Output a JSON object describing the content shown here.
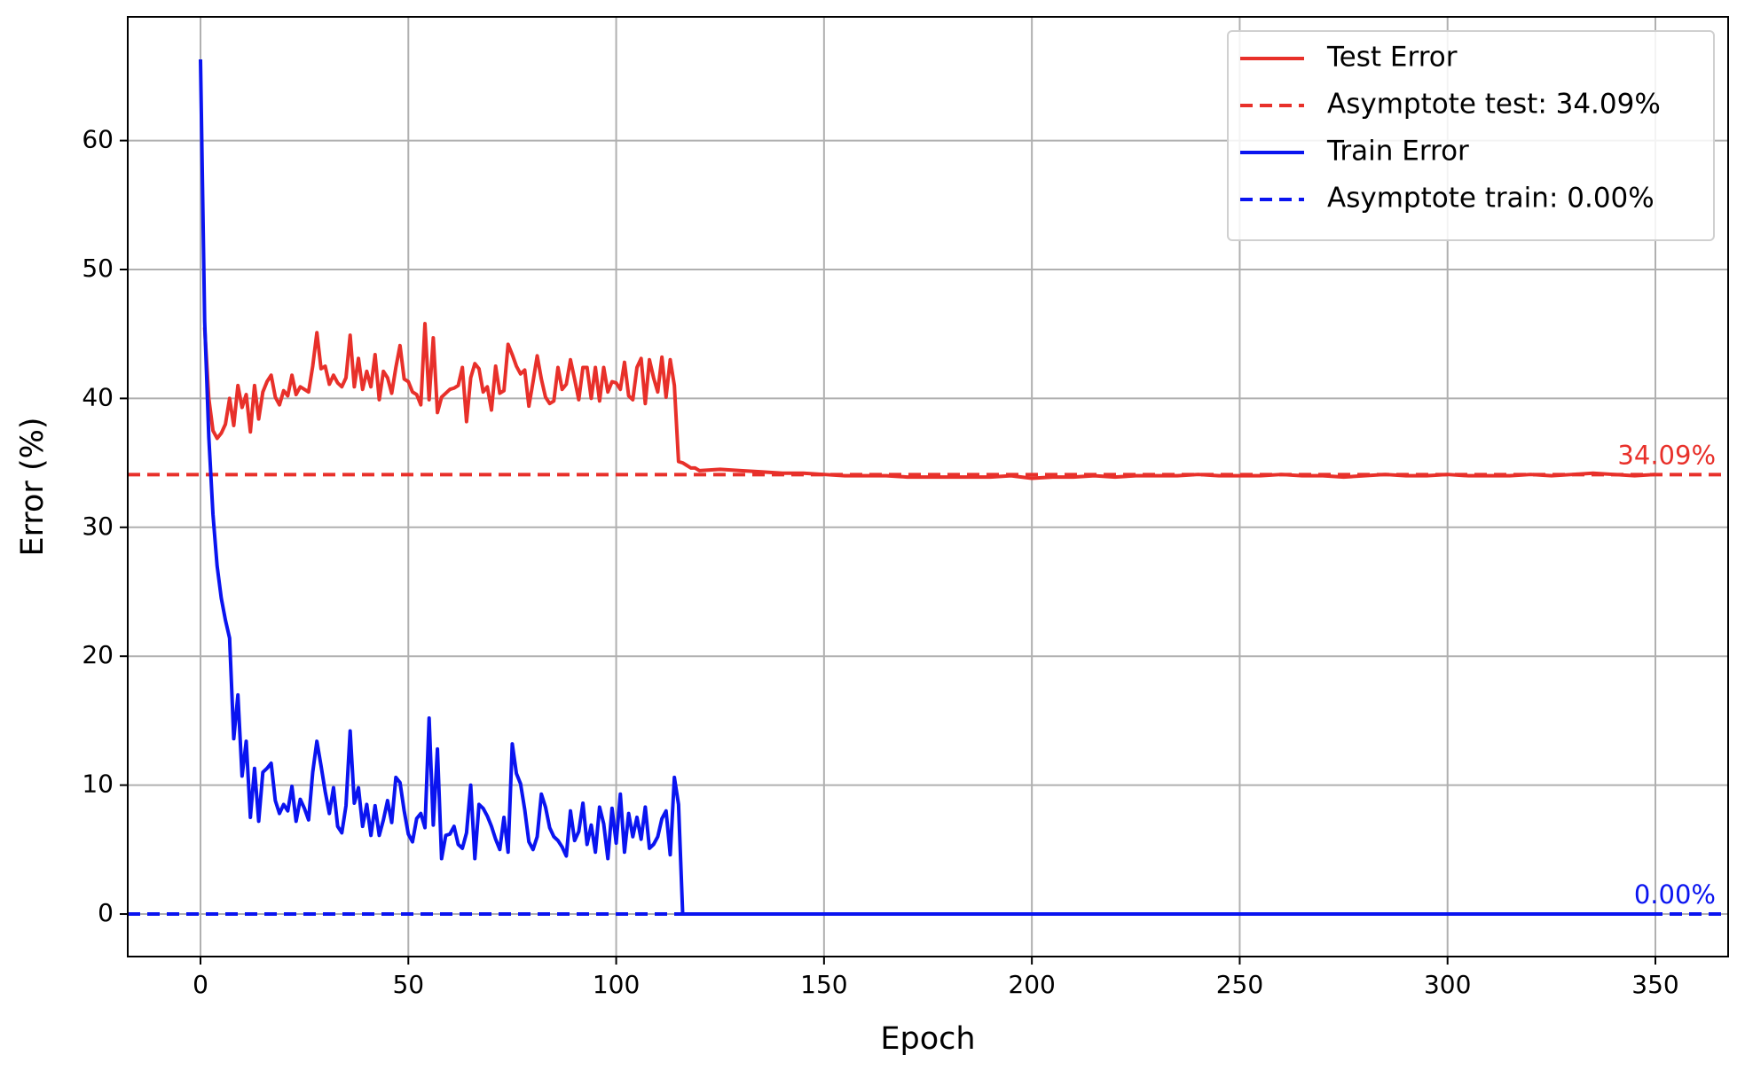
{
  "chart_data": {
    "type": "line",
    "xlabel": "Epoch",
    "ylabel": "Error (%)",
    "xlim": [
      -17.5,
      367.5
    ],
    "xticks": [
      0,
      50,
      100,
      150,
      200,
      250,
      300,
      350
    ],
    "ylim": [
      -3.3,
      69.6
    ],
    "yticks": [
      0,
      10,
      20,
      30,
      40,
      50,
      60
    ],
    "grid": true,
    "legend": "upper right",
    "x": [
      0,
      1,
      2,
      3,
      4,
      5,
      6,
      7,
      8,
      9,
      10,
      11,
      12,
      13,
      14,
      15,
      16,
      17,
      18,
      19,
      20,
      21,
      22,
      23,
      24,
      25,
      26,
      27,
      28,
      29,
      30,
      31,
      32,
      33,
      34,
      35,
      36,
      37,
      38,
      39,
      40,
      41,
      42,
      43,
      44,
      45,
      46,
      47,
      48,
      49,
      50,
      51,
      52,
      53,
      54,
      55,
      56,
      57,
      58,
      59,
      60,
      61,
      62,
      63,
      64,
      65,
      66,
      67,
      68,
      69,
      70,
      71,
      72,
      73,
      74,
      75,
      76,
      77,
      78,
      79,
      80,
      81,
      82,
      83,
      84,
      85,
      86,
      87,
      88,
      89,
      90,
      91,
      92,
      93,
      94,
      95,
      96,
      97,
      98,
      99,
      100,
      101,
      102,
      103,
      104,
      105,
      106,
      107,
      108,
      109,
      110,
      111,
      112,
      113,
      114,
      115,
      116,
      117,
      118,
      119,
      120,
      125,
      130,
      135,
      140,
      145,
      150,
      155,
      160,
      165,
      170,
      175,
      180,
      185,
      190,
      195,
      200,
      205,
      210,
      215,
      220,
      225,
      230,
      235,
      240,
      245,
      250,
      255,
      260,
      265,
      270,
      275,
      280,
      285,
      290,
      295,
      300,
      305,
      310,
      315,
      320,
      325,
      330,
      335,
      340,
      345,
      350
    ],
    "series": [
      {
        "name": "Test Error",
        "color": "#e8302a",
        "values": [
          null,
          45.5,
          40,
          37.5,
          36.9,
          37.3,
          38,
          40,
          37.9,
          41,
          39.3,
          40.3,
          37.4,
          41,
          38.4,
          40.5,
          41.3,
          41.8,
          40.1,
          39.5,
          40.6,
          40.2,
          41.8,
          40.3,
          40.9,
          40.7,
          40.5,
          42.5,
          45.1,
          42.3,
          42.5,
          41.1,
          41.8,
          41.2,
          40.9,
          41.6,
          44.9,
          40.9,
          43.1,
          40.7,
          42.1,
          40.9,
          43.4,
          39.9,
          42.1,
          41.6,
          40.4,
          42.4,
          44.1,
          41.5,
          41.3,
          40.5,
          40.3,
          39.5,
          45.8,
          39.9,
          44.7,
          38.9,
          40.1,
          40.4,
          40.7,
          40.8,
          41,
          42.4,
          38.2,
          41.6,
          42.7,
          42.3,
          40.5,
          40.9,
          39.1,
          42.5,
          40.4,
          40.6,
          44.2,
          43.4,
          42.5,
          41.9,
          42.2,
          39.4,
          41.3,
          43.3,
          41.5,
          40.1,
          39.6,
          39.8,
          42.4,
          40.7,
          41.1,
          43,
          41.5,
          39.9,
          42.4,
          42.4,
          40,
          42.4,
          39.8,
          42.4,
          40.5,
          41.3,
          41.2,
          40.7,
          42.8,
          40.2,
          39.9,
          42.4,
          43.1,
          39.6,
          43,
          41.6,
          40.5,
          43.2,
          40.1,
          43,
          41,
          35.1,
          35,
          34.8,
          34.6,
          34.6,
          34.4,
          34.5,
          34.4,
          34.3,
          34.2,
          34.2,
          34.1,
          34,
          34,
          34,
          33.9,
          33.9,
          33.9,
          33.9,
          33.9,
          34,
          33.8,
          33.9,
          33.9,
          34,
          33.9,
          34,
          34,
          34,
          34.1,
          34,
          34,
          34,
          34.1,
          34,
          34,
          33.9,
          34,
          34.1,
          34,
          34,
          34.1,
          34,
          34,
          34,
          34.1,
          34,
          34.1,
          34.2,
          34.1,
          34,
          34.1
        ]
      },
      {
        "name": "Train Error",
        "color": "#0a14f0",
        "values": [
          66.3,
          46,
          37,
          31,
          27,
          24.5,
          22.8,
          21.4,
          13.6,
          17,
          10.7,
          13.4,
          7.5,
          11.3,
          7.2,
          11,
          11.3,
          11.7,
          8.8,
          7.8,
          8.5,
          8,
          9.9,
          7.2,
          8.9,
          8.2,
          7.3,
          11,
          13.4,
          11.5,
          9.5,
          7.8,
          9.8,
          6.8,
          6.3,
          8.4,
          14.2,
          8.6,
          9.8,
          6.8,
          8.5,
          6.1,
          8.4,
          6.1,
          7.3,
          8.8,
          7.1,
          10.6,
          10.2,
          8,
          6.2,
          5.6,
          7.4,
          7.8,
          6.7,
          15.2,
          6.9,
          12.8,
          4.3,
          6.1,
          6.2,
          6.8,
          5.4,
          5.1,
          6.3,
          10,
          4.3,
          8.5,
          8.2,
          7.6,
          6.8,
          5.8,
          5,
          7.5,
          4.8,
          13.2,
          10.9,
          10.1,
          8.1,
          5.6,
          5,
          6,
          9.3,
          8.3,
          6.7,
          6,
          5.7,
          5.2,
          4.5,
          8,
          5.7,
          6.4,
          8.6,
          5.4,
          6.9,
          4.8,
          8.3,
          7,
          4.3,
          8.2,
          5.5,
          9.3,
          4.8,
          7.8,
          6,
          7.5,
          5.8,
          8.3,
          5.1,
          5.4,
          6,
          7.4,
          8,
          4.6,
          10.6,
          8.5,
          0,
          0,
          0,
          0,
          0,
          0,
          0,
          0,
          0,
          0,
          0,
          0,
          0,
          0,
          0,
          0,
          0,
          0,
          0,
          0,
          0,
          0,
          0,
          0,
          0,
          0,
          0,
          0,
          0,
          0,
          0,
          0,
          0,
          0,
          0,
          0,
          0,
          0,
          0,
          0,
          0,
          0,
          0,
          0,
          0,
          0,
          0,
          0,
          0,
          0,
          0
        ]
      }
    ],
    "hlines": [
      {
        "name": "Asymptote test: 34.09%",
        "value": 34.09,
        "value_label": "34.09%",
        "color": "#e8302a"
      },
      {
        "name": "Asymptote train: 0.00%",
        "value": 0,
        "value_label": "0.00%",
        "color": "#0a14f0"
      }
    ]
  }
}
